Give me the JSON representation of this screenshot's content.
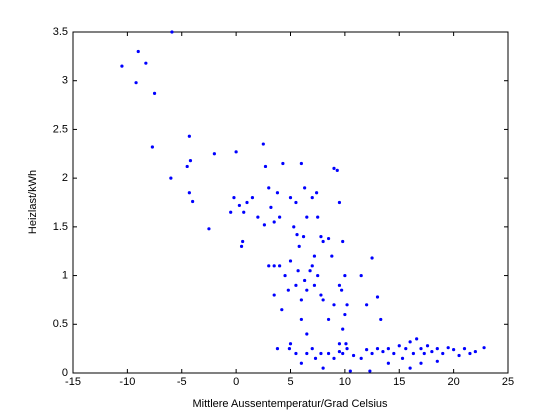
{
  "chart_data": {
    "type": "scatter",
    "xlabel": "Mittlere Aussentemperatur/Grad Celsius",
    "ylabel": "Heizlast/kWh",
    "color": "#0000ff",
    "xlim": [
      -15,
      25
    ],
    "xticks": [
      -15,
      -10,
      -5,
      0,
      5,
      10,
      15,
      20,
      25
    ],
    "ylim": [
      0,
      3.5
    ],
    "yticks": [
      0,
      0.5,
      1,
      1.5,
      2,
      2.5,
      3,
      3.5
    ],
    "x": [
      -10.5,
      -9.2,
      -9,
      -8.3,
      -7.5,
      -7.7,
      -5.9,
      -4.3,
      -4.5,
      -4.2,
      -4.3,
      -4,
      -6,
      -2.5,
      -2,
      0,
      -0.5,
      -0.2,
      0.3,
      0.5,
      0.6,
      0.7,
      1,
      1.5,
      2,
      2.5,
      2.7,
      3,
      3.2,
      2.6,
      3.5,
      3.8,
      4,
      4.3,
      5,
      5.5,
      5.3,
      5.6,
      5.8,
      6,
      6.2,
      6.3,
      6.5,
      7,
      7.2,
      7.4,
      7.5,
      7.8,
      8,
      8.5,
      8.8,
      9,
      9.3,
      9.5,
      9.8,
      3,
      3.5,
      4,
      4.5,
      5,
      4.8,
      5.5,
      5.7,
      6,
      6.3,
      6.5,
      6.8,
      7,
      7.2,
      7.5,
      7.8,
      8,
      8.5,
      9,
      9.5,
      9.7,
      10,
      10,
      10.2,
      9.8,
      10.1,
      9.5,
      11.5,
      12,
      12.5,
      13,
      13.3,
      3.5,
      4.2,
      5,
      6,
      6.5,
      7,
      3.8,
      4.9,
      5.5,
      6,
      6.5,
      7.3,
      7.8,
      8,
      8.5,
      9,
      9.5,
      9.8,
      10.2,
      10.5,
      10.8,
      11.5,
      12,
      12.5,
      13,
      13.5,
      14,
      14.5,
      15,
      15.3,
      15.6,
      16,
      16.3,
      16.6,
      17,
      17.3,
      17.6,
      18,
      18.5,
      19,
      19.5,
      20,
      20.5,
      21,
      21.5,
      22,
      22.8,
      14,
      16,
      12.3,
      17,
      18.5
    ],
    "values": [
      3.15,
      2.98,
      3.3,
      3.18,
      2.87,
      2.32,
      3.5,
      2.43,
      2.12,
      2.18,
      1.85,
      1.76,
      2,
      1.48,
      2.25,
      2.27,
      1.65,
      1.8,
      1.72,
      1.3,
      1.35,
      1.65,
      1.75,
      1.8,
      1.6,
      2.35,
      2.12,
      1.9,
      1.7,
      1.52,
      1.55,
      1.85,
      1.6,
      2.15,
      1.8,
      1.75,
      1.5,
      1.42,
      1.3,
      2.15,
      1.4,
      1.9,
      1.6,
      1.8,
      1.2,
      1.85,
      1.6,
      1.4,
      1.35,
      1.38,
      1.2,
      2.1,
      2.08,
      1.75,
      1.35,
      1.1,
      1.1,
      1.1,
      1,
      1.15,
      0.85,
      0.9,
      1.05,
      0.75,
      0.95,
      0.85,
      1.05,
      1.1,
      0.9,
      1,
      0.8,
      0.75,
      0.55,
      0.7,
      0.9,
      0.85,
      1,
      0.6,
      0.7,
      0.45,
      0.3,
      0.3,
      1,
      0.7,
      1.18,
      0.78,
      0.55,
      0.8,
      0.65,
      0.3,
      0.55,
      0.4,
      0.25,
      0.25,
      0.25,
      0.2,
      0.1,
      0.2,
      0.15,
      0.2,
      0.05,
      0.2,
      0.15,
      0.22,
      0.2,
      0.25,
      0.02,
      0.18,
      0.15,
      0.24,
      0.2,
      0.25,
      0.22,
      0.25,
      0.2,
      0.28,
      0.15,
      0.25,
      0.32,
      0.2,
      0.35,
      0.25,
      0.2,
      0.28,
      0.22,
      0.25,
      0.2,
      0.26,
      0.24,
      0.18,
      0.25,
      0.2,
      0.22,
      0.26,
      0.1,
      0.05,
      0.02,
      0.1,
      0.12
    ]
  }
}
